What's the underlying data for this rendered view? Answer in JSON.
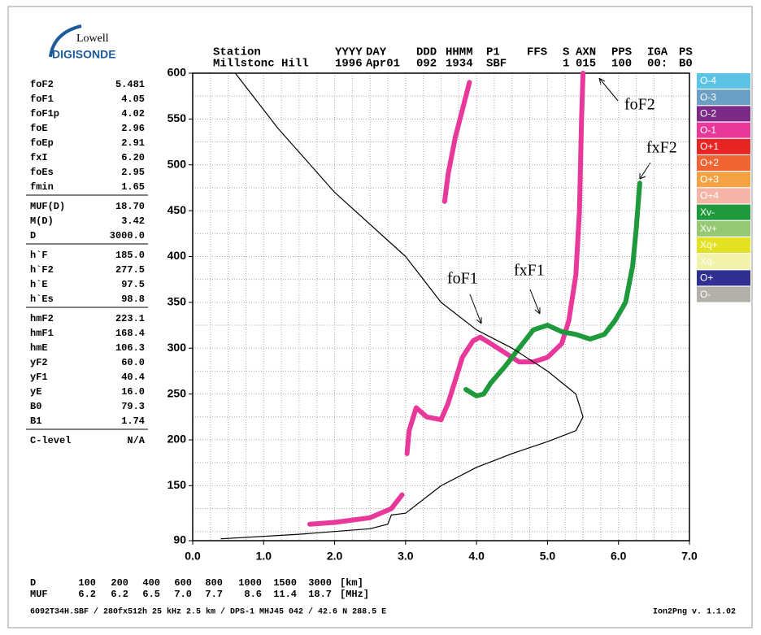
{
  "logo": {
    "line1": "Lowell",
    "line2": "DIGISONDE"
  },
  "header": {
    "labels": [
      "Station",
      "YYYY",
      "DAY",
      "DDD",
      "HHMM",
      "P1",
      "FFS",
      "S",
      "AXN",
      "PPS",
      "IGA",
      "PS"
    ],
    "values": [
      "Millstonc Hill",
      "1996",
      "Apr01",
      "092",
      "1934",
      "SBF",
      "1",
      "015",
      "100",
      "00:",
      "B0"
    ]
  },
  "parameters": [
    [
      {
        "name": "foF2",
        "value": "5.481"
      },
      {
        "name": "foF1",
        "value": "4.05"
      },
      {
        "name": "foF1p",
        "value": "4.02"
      },
      {
        "name": "foE",
        "value": "2.96"
      },
      {
        "name": "foEp",
        "value": "2.91"
      },
      {
        "name": "fxI",
        "value": "6.20"
      },
      {
        "name": "foEs",
        "value": "2.95"
      },
      {
        "name": "fmin",
        "value": "1.65"
      }
    ],
    [
      {
        "name": "MUF(D)",
        "value": "18.70"
      },
      {
        "name": "M(D)",
        "value": "3.42"
      },
      {
        "name": "D",
        "value": "3000.0"
      }
    ],
    [
      {
        "name": "h`F",
        "value": "185.0"
      },
      {
        "name": "h`F2",
        "value": "277.5"
      },
      {
        "name": "h`E",
        "value": "97.5"
      },
      {
        "name": "h`Es",
        "value": "98.8"
      }
    ],
    [
      {
        "name": "hmF2",
        "value": "223.1"
      },
      {
        "name": "hmF1",
        "value": "168.4"
      },
      {
        "name": "hmE",
        "value": "106.3"
      },
      {
        "name": "yF2",
        "value": "60.0"
      },
      {
        "name": "yF1",
        "value": "40.4"
      },
      {
        "name": "yE",
        "value": "16.0"
      },
      {
        "name": "B0",
        "value": "79.3"
      },
      {
        "name": "B1",
        "value": "1.74"
      }
    ],
    [
      {
        "name": "C-level",
        "value": "N/A"
      }
    ]
  ],
  "legend_codes": [
    {
      "label": "O-4",
      "color": "#5bc3e6"
    },
    {
      "label": "O-3",
      "color": "#6a9fc6"
    },
    {
      "label": "O-2",
      "color": "#7b2a86"
    },
    {
      "label": "O-1",
      "color": "#e8399a"
    },
    {
      "label": "O+1",
      "color": "#e82424"
    },
    {
      "label": "O+2",
      "color": "#f06434"
    },
    {
      "label": "O+3",
      "color": "#f4a244"
    },
    {
      "label": "O+4",
      "color": "#f4b4a6"
    },
    {
      "label": "Xv-",
      "color": "#1e9a3c"
    },
    {
      "label": "Xv+",
      "color": "#94c872"
    },
    {
      "label": "Xq+",
      "color": "#e2e222"
    },
    {
      "label": "Xq-",
      "color": "#f2f2a8"
    },
    {
      "label": "O+",
      "color": "#303090"
    },
    {
      "label": "O-",
      "color": "#b2b0a8"
    }
  ],
  "muf_table": {
    "rows": [
      [
        "D",
        "100",
        "200",
        "400",
        "600",
        "800",
        "1000",
        "1500",
        "3000",
        "[km]"
      ],
      [
        "MUF",
        "6.2",
        "6.2",
        "6.5",
        "7.0",
        "7.7",
        "8.6",
        "11.4",
        "18.7",
        "[MHz]"
      ]
    ]
  },
  "footer": {
    "left": "6092T34H.SBF / 280fx512h 25 kHz 2.5 km / DPS-1 MHJ45 042 / 42.6 N 288.5 E",
    "right": "Ion2Png v. 1.1.02"
  },
  "chart_data": {
    "type": "line",
    "xlim": [
      0,
      7
    ],
    "xticks": [
      {
        "value": 0,
        "label": "0.0"
      },
      {
        "value": 1,
        "label": "1.0"
      },
      {
        "value": 2,
        "label": "2.0"
      },
      {
        "value": 3,
        "label": "3.0"
      },
      {
        "value": 4,
        "label": "4.0"
      },
      {
        "value": 5,
        "label": "5.0"
      },
      {
        "value": 6,
        "label": "6.0"
      },
      {
        "value": 7,
        "label": "7.0"
      }
    ],
    "ylim": [
      90,
      600
    ],
    "yticks": [
      90,
      150,
      200,
      250,
      300,
      350,
      400,
      450,
      500,
      550,
      600
    ],
    "grid": true,
    "grid_minor": {
      "x": 0.25,
      "y": 25
    },
    "series": [
      {
        "name": "O-1",
        "color": "#e8399a",
        "x": [
          1.65,
          2.0,
          2.5,
          2.8,
          2.95,
          null,
          3.02,
          3.05,
          3.15,
          3.3,
          3.5,
          3.6,
          3.7,
          3.8,
          3.95,
          4.05,
          4.2,
          4.4,
          4.6,
          4.8,
          5.0,
          5.2,
          5.3,
          5.4,
          5.45,
          5.48,
          5.5,
          null,
          3.55,
          3.6,
          3.7,
          3.8,
          3.9
        ],
        "values": [
          108,
          110,
          115,
          125,
          140,
          null,
          185,
          210,
          235,
          225,
          222,
          240,
          265,
          290,
          308,
          312,
          305,
          295,
          285,
          285,
          290,
          305,
          330,
          380,
          450,
          550,
          600,
          null,
          460,
          490,
          530,
          560,
          590
        ]
      },
      {
        "name": "Xv-",
        "color": "#1e9a3c",
        "x": [
          3.85,
          4.0,
          4.1,
          4.2,
          4.4,
          4.6,
          4.8,
          5.0,
          5.2,
          5.4,
          5.6,
          5.8,
          5.95,
          6.1,
          6.2,
          6.25,
          6.3
        ],
        "values": [
          255,
          248,
          250,
          262,
          280,
          300,
          320,
          325,
          318,
          315,
          310,
          315,
          330,
          350,
          390,
          430,
          480
        ]
      },
      {
        "name": "profile",
        "color": "#000000",
        "x": [
          0.4,
          1.5,
          2.5,
          2.75,
          2.8,
          3.0,
          3.5,
          4.0,
          4.5,
          5.0,
          5.4,
          5.5,
          5.4,
          5.0,
          4.5,
          4.0,
          3.5,
          3.0,
          2.0,
          1.2,
          0.6
        ],
        "values": [
          92,
          97,
          103,
          108,
          118,
          120,
          150,
          170,
          185,
          198,
          210,
          225,
          250,
          275,
          300,
          320,
          350,
          400,
          470,
          540,
          600
        ]
      }
    ],
    "annotations": [
      "foF2",
      "fxF2",
      "foF1",
      "fxF1"
    ]
  }
}
